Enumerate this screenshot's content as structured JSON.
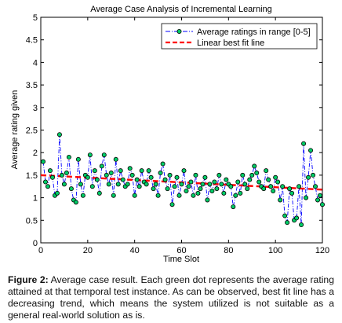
{
  "chart_data": {
    "type": "line",
    "title": "Average Case Analysis of Incremental Learning",
    "xlabel": "Time Slot",
    "ylabel": "Average rating given",
    "xlim": [
      0,
      120
    ],
    "ylim": [
      0,
      5
    ],
    "xticks": [
      "0",
      "20",
      "40",
      "60",
      "80",
      "100",
      "120"
    ],
    "yticks": [
      "0",
      "0.5",
      "1",
      "1.5",
      "2",
      "2.5",
      "3",
      "3.5",
      "4",
      "4.5",
      "5"
    ],
    "grid": false,
    "legend_position": "top-right",
    "colors": {
      "series_line": "#0000ff",
      "marker_fill": "#00cc66",
      "marker_edge": "#000000",
      "fit_line": "#ff0000"
    },
    "series": [
      {
        "name": "Average ratings in range [0-5]",
        "style": "dash-dot line with green circle markers",
        "x": [
          1,
          2,
          3,
          4,
          5,
          6,
          7,
          8,
          9,
          10,
          11,
          12,
          13,
          14,
          15,
          16,
          17,
          18,
          19,
          20,
          21,
          22,
          23,
          24,
          25,
          26,
          27,
          28,
          29,
          30,
          31,
          32,
          33,
          34,
          35,
          36,
          37,
          38,
          39,
          40,
          41,
          42,
          43,
          44,
          45,
          46,
          47,
          48,
          49,
          50,
          51,
          52,
          53,
          54,
          55,
          56,
          57,
          58,
          59,
          60,
          61,
          62,
          63,
          64,
          65,
          66,
          67,
          68,
          69,
          70,
          71,
          72,
          73,
          74,
          75,
          76,
          77,
          78,
          79,
          80,
          81,
          82,
          83,
          84,
          85,
          86,
          87,
          88,
          89,
          90,
          91,
          92,
          93,
          94,
          95,
          96,
          97,
          98,
          99,
          100,
          101,
          102,
          103,
          104,
          105,
          106,
          107,
          108,
          109,
          110,
          111,
          112,
          113,
          114,
          115,
          116,
          117,
          118,
          119,
          120
        ],
        "y": [
          1.8,
          1.35,
          1.25,
          1.6,
          1.45,
          1.05,
          1.1,
          2.4,
          1.5,
          1.3,
          1.55,
          1.9,
          1.2,
          0.95,
          0.9,
          1.85,
          1.3,
          1.05,
          1.5,
          1.45,
          1.95,
          1.25,
          1.6,
          1.4,
          1.1,
          1.7,
          1.95,
          1.5,
          1.3,
          1.55,
          1.05,
          1.85,
          1.3,
          1.6,
          1.4,
          1.25,
          1.3,
          1.65,
          1.5,
          1.05,
          1.4,
          1.25,
          1.6,
          1.35,
          1.3,
          1.6,
          1.45,
          1.2,
          1.3,
          1.05,
          1.55,
          1.75,
          1.4,
          1.2,
          1.5,
          0.85,
          1.25,
          1.45,
          1.05,
          1.3,
          1.6,
          1.15,
          1.25,
          1.35,
          1.05,
          1.5,
          1.1,
          1.2,
          1.3,
          1.45,
          0.95,
          1.3,
          1.15,
          1.35,
          1.2,
          1.5,
          1.3,
          1.1,
          1.4,
          1.3,
          1.25,
          0.8,
          1.05,
          1.35,
          1.1,
          1.5,
          1.3,
          1.2,
          1.4,
          1.5,
          1.7,
          1.55,
          1.35,
          1.25,
          1.2,
          1.6,
          1.4,
          1.25,
          1.15,
          1.45,
          1.35,
          0.95,
          1.25,
          0.6,
          0.45,
          1.2,
          1.1,
          0.5,
          0.55,
          1.25,
          0.4,
          2.2,
          1.0,
          1.45,
          2.05,
          1.5,
          1.25,
          0.95,
          1.05,
          0.85
        ]
      },
      {
        "name": "Linear best fit line",
        "style": "dashed red line",
        "x": [
          0,
          120
        ],
        "y": [
          1.5,
          1.18
        ]
      }
    ]
  },
  "caption": {
    "label": "Figure 2:",
    "text": " Average case result. Each green dot represents the average rating attained at that temporal test instance. As can be observed, best fit line has a decreasing trend, which means the system utilized is not suitable as a general real-world solution as is."
  }
}
